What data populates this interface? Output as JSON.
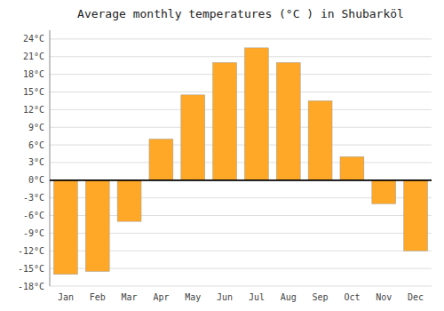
{
  "chart_data": {
    "type": "bar",
    "title": "Average monthly temperatures (°C ) in Shubarköl",
    "categories": [
      "Jan",
      "Feb",
      "Mar",
      "Apr",
      "May",
      "Jun",
      "Jul",
      "Aug",
      "Sep",
      "Oct",
      "Nov",
      "Dec"
    ],
    "values": [
      -16,
      -15.5,
      -7,
      7,
      14.5,
      20,
      22.5,
      20,
      13.5,
      4,
      -4,
      -12
    ],
    "color": "#FFA726",
    "ylim": [
      -18,
      25.5
    ],
    "yticks": [
      {
        "value": -18,
        "label": "-18°C"
      },
      {
        "value": -15,
        "label": "-15°C"
      },
      {
        "value": -12,
        "label": "-12°C"
      },
      {
        "value": -9,
        "label": "-9°C"
      },
      {
        "value": -6,
        "label": "-6°C"
      },
      {
        "value": -3,
        "label": "-3°C"
      },
      {
        "value": 0,
        "label": "0°C"
      },
      {
        "value": 3,
        "label": "3°C"
      },
      {
        "value": 6,
        "label": "6°C"
      },
      {
        "value": 9,
        "label": "9°C"
      },
      {
        "value": 12,
        "label": "12°C"
      },
      {
        "value": 15,
        "label": "15°C"
      },
      {
        "value": 18,
        "label": "18°C"
      },
      {
        "value": 21,
        "label": "21°C"
      },
      {
        "value": 24,
        "label": "24°C"
      }
    ],
    "grid": true
  }
}
